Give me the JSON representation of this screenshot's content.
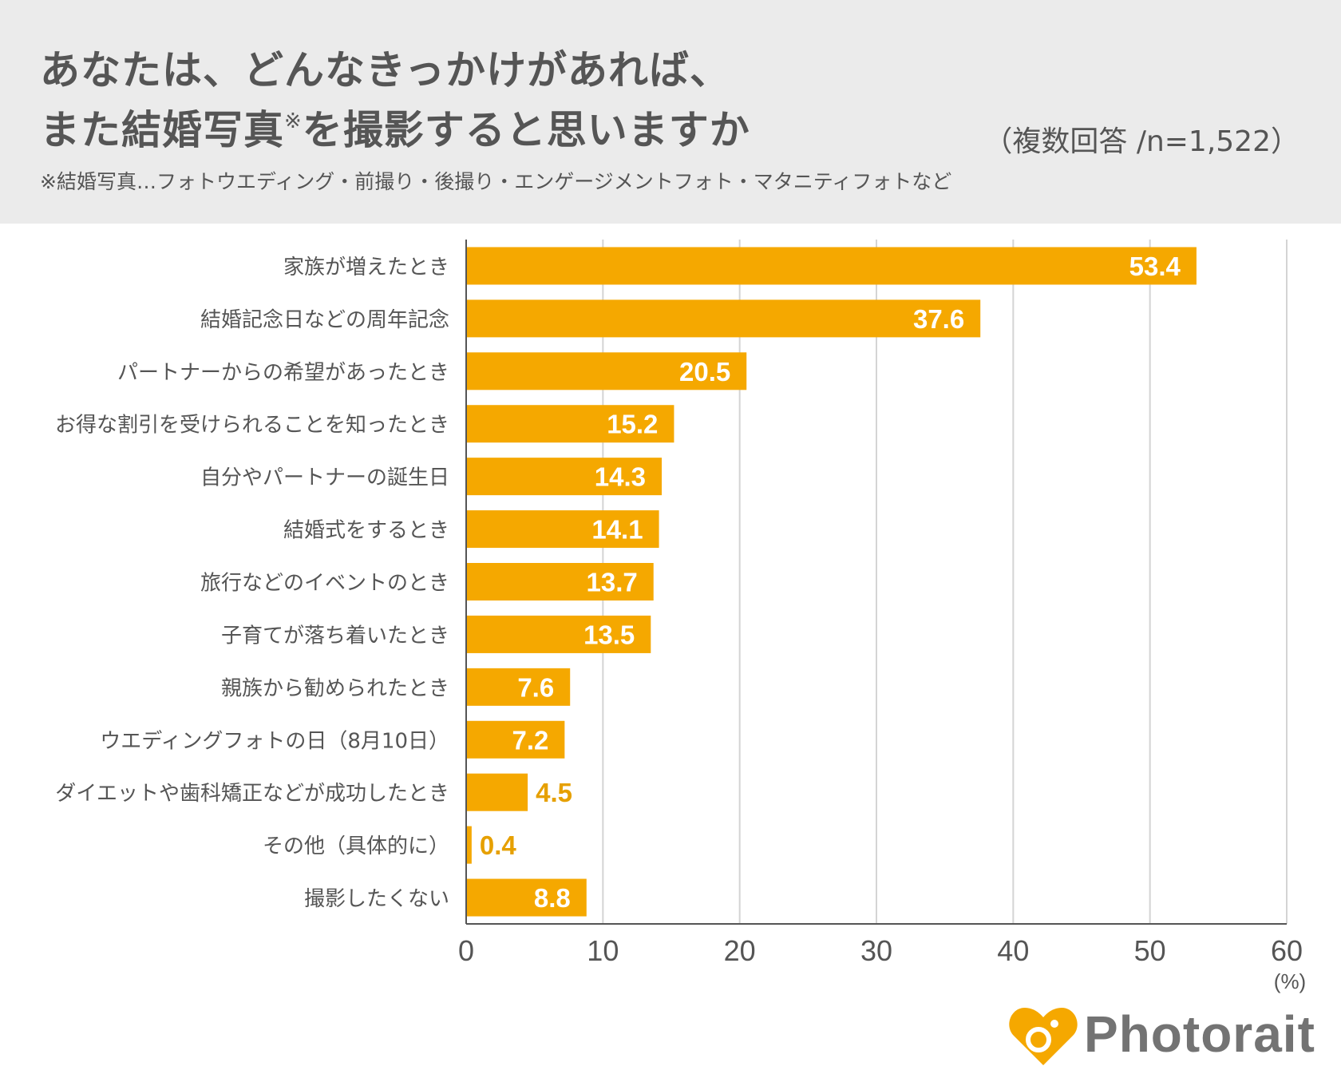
{
  "header": {
    "title_line1": "あなたは、どんなきっかけがあれば、",
    "title_line2_a": "また結婚写真",
    "title_mark": "※",
    "title_line2_b": "を撮影すると思いますか",
    "n_label": "（複数回答 /n=1,522）",
    "footnote": "※結婚写真…フォトウエディング・前撮り・後撮り・エンゲージメントフォト・マタニティフォトなど"
  },
  "chart_data": {
    "type": "bar",
    "orientation": "horizontal",
    "categories": [
      "家族が増えたとき",
      "結婚記念日などの周年記念",
      "パートナーからの希望があったとき",
      "お得な割引を受けられることを知ったとき",
      "自分やパートナーの誕生日",
      "結婚式をするとき",
      "旅行などのイベントのとき",
      "子育てが落ち着いたとき",
      "親族から勧められたとき",
      "ウエディングフォトの日（8月10日）",
      "ダイエットや歯科矯正などが成功したとき",
      "その他（具体的に）",
      "撮影したくない"
    ],
    "values": [
      53.4,
      37.6,
      20.5,
      15.2,
      14.3,
      14.1,
      13.7,
      13.5,
      7.6,
      7.2,
      4.5,
      0.4,
      8.8
    ],
    "value_labels": [
      "53.4",
      "37.6",
      "20.5",
      "15.2",
      "14.3",
      "14.1",
      "13.7",
      "13.5",
      "7.6",
      "7.2",
      "4.5",
      "0.4",
      "8.8"
    ],
    "xlim": [
      0,
      60
    ],
    "xticks": [
      "0",
      "10",
      "20",
      "30",
      "40",
      "50",
      "60"
    ],
    "xunit": "(%)",
    "grid": true,
    "bar_color": "#f5a800"
  },
  "logo": {
    "text": "Photorait",
    "color": "#f5a800"
  }
}
